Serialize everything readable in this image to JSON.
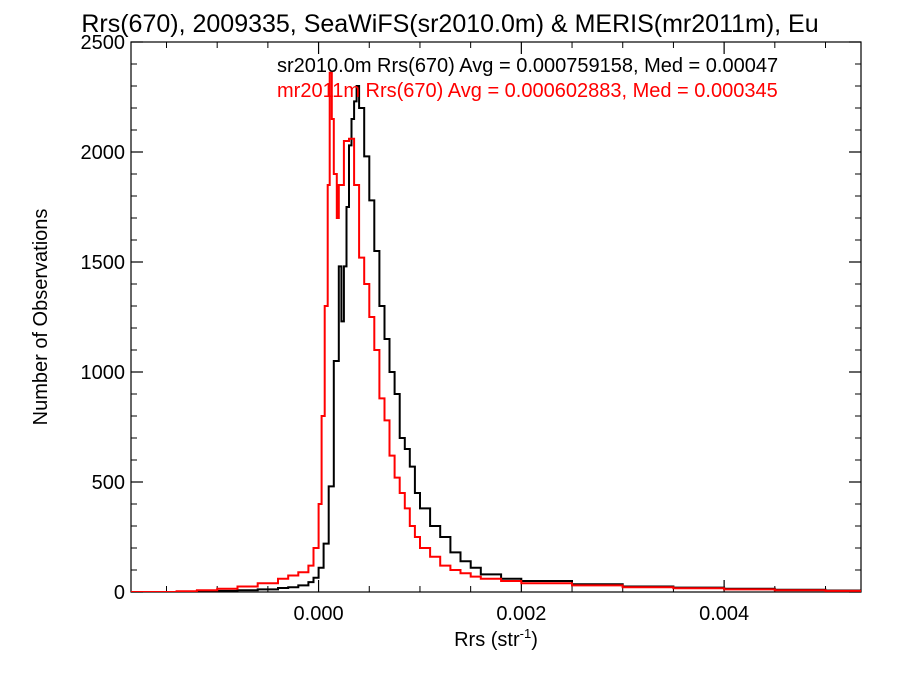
{
  "chart_data": {
    "type": "line",
    "title": "Rrs(670), 2009335, SeaWiFS(sr2010.0m) & MERIS(mr2011m), Eu",
    "xlabel": "Rrs (str",
    "xlabel_sup": "-1",
    "xlabel_close": ")",
    "ylabel": "Number of Observations",
    "xlim": [
      -0.00185,
      0.00535
    ],
    "ylim": [
      0,
      2500
    ],
    "x_ticks": [
      0.0,
      0.002,
      0.004
    ],
    "x_tick_labels": [
      "0.000",
      "0.002",
      "0.004"
    ],
    "y_ticks": [
      0,
      500,
      1000,
      1500,
      2000,
      2500
    ],
    "y_tick_labels": [
      "0",
      "500",
      "1000",
      "1500",
      "2000",
      "2500"
    ],
    "grid": false,
    "series": [
      {
        "name": "sr2010.0m Rrs(670) Avg = 0.000759158, Med = 0.00047",
        "color": "#000000",
        "points": [
          [
            -0.00185,
            0
          ],
          [
            -0.0014,
            1
          ],
          [
            -0.0012,
            3
          ],
          [
            -0.001,
            5
          ],
          [
            -0.0008,
            8
          ],
          [
            -0.0006,
            12
          ],
          [
            -0.0004,
            18
          ],
          [
            -0.0003,
            22
          ],
          [
            -0.0002,
            30
          ],
          [
            -0.0001,
            45
          ],
          [
            -5e-05,
            65
          ],
          [
            0.0,
            110
          ],
          [
            5e-05,
            220
          ],
          [
            0.0001,
            480
          ],
          [
            0.00015,
            1050
          ],
          [
            0.0002,
            1480
          ],
          [
            0.000225,
            1230
          ],
          [
            0.00025,
            1480
          ],
          [
            0.000275,
            1750
          ],
          [
            0.0003,
            2030
          ],
          [
            0.000325,
            2150
          ],
          [
            0.00035,
            2230
          ],
          [
            0.000375,
            2300
          ],
          [
            0.0004,
            2200
          ],
          [
            0.00045,
            1980
          ],
          [
            0.0005,
            1780
          ],
          [
            0.00055,
            1550
          ],
          [
            0.0006,
            1300
          ],
          [
            0.00065,
            1150
          ],
          [
            0.0007,
            1000
          ],
          [
            0.00075,
            900
          ],
          [
            0.0008,
            700
          ],
          [
            0.00085,
            650
          ],
          [
            0.0009,
            570
          ],
          [
            0.00095,
            450
          ],
          [
            0.001,
            380
          ],
          [
            0.0011,
            300
          ],
          [
            0.0012,
            250
          ],
          [
            0.0013,
            180
          ],
          [
            0.0014,
            140
          ],
          [
            0.0015,
            110
          ],
          [
            0.0016,
            80
          ],
          [
            0.0018,
            60
          ],
          [
            0.002,
            50
          ],
          [
            0.0025,
            35
          ],
          [
            0.003,
            25
          ],
          [
            0.0035,
            20
          ],
          [
            0.004,
            15
          ],
          [
            0.0045,
            10
          ],
          [
            0.005,
            7
          ],
          [
            0.00535,
            5
          ]
        ]
      },
      {
        "name": "mr2011m Rrs(670) Avg = 0.000602883, Med = 0.000345",
        "color": "#ff0000",
        "points": [
          [
            -0.00185,
            0
          ],
          [
            -0.0014,
            3
          ],
          [
            -0.0012,
            8
          ],
          [
            -0.001,
            15
          ],
          [
            -0.0008,
            25
          ],
          [
            -0.0006,
            40
          ],
          [
            -0.0004,
            60
          ],
          [
            -0.0003,
            75
          ],
          [
            -0.0002,
            90
          ],
          [
            -0.0001,
            120
          ],
          [
            -5e-05,
            200
          ],
          [
            0.0,
            400
          ],
          [
            3e-05,
            800
          ],
          [
            6e-05,
            1300
          ],
          [
            9e-05,
            1850
          ],
          [
            0.00011,
            2360
          ],
          [
            0.00013,
            2150
          ],
          [
            0.00015,
            1900
          ],
          [
            0.00018,
            1700
          ],
          [
            0.0002,
            1850
          ],
          [
            0.00025,
            2050
          ],
          [
            0.0003,
            2060
          ],
          [
            0.00035,
            1850
          ],
          [
            0.0004,
            1520
          ],
          [
            0.00045,
            1400
          ],
          [
            0.0005,
            1250
          ],
          [
            0.00055,
            1100
          ],
          [
            0.0006,
            880
          ],
          [
            0.00065,
            780
          ],
          [
            0.0007,
            620
          ],
          [
            0.00075,
            520
          ],
          [
            0.0008,
            450
          ],
          [
            0.00085,
            380
          ],
          [
            0.0009,
            300
          ],
          [
            0.00095,
            250
          ],
          [
            0.001,
            200
          ],
          [
            0.0011,
            160
          ],
          [
            0.0012,
            120
          ],
          [
            0.0013,
            100
          ],
          [
            0.0014,
            85
          ],
          [
            0.0015,
            70
          ],
          [
            0.0016,
            60
          ],
          [
            0.0018,
            50
          ],
          [
            0.002,
            40
          ],
          [
            0.0025,
            30
          ],
          [
            0.003,
            22
          ],
          [
            0.0035,
            17
          ],
          [
            0.004,
            12
          ],
          [
            0.0045,
            8
          ],
          [
            0.005,
            5
          ],
          [
            0.00535,
            3
          ]
        ]
      }
    ]
  }
}
